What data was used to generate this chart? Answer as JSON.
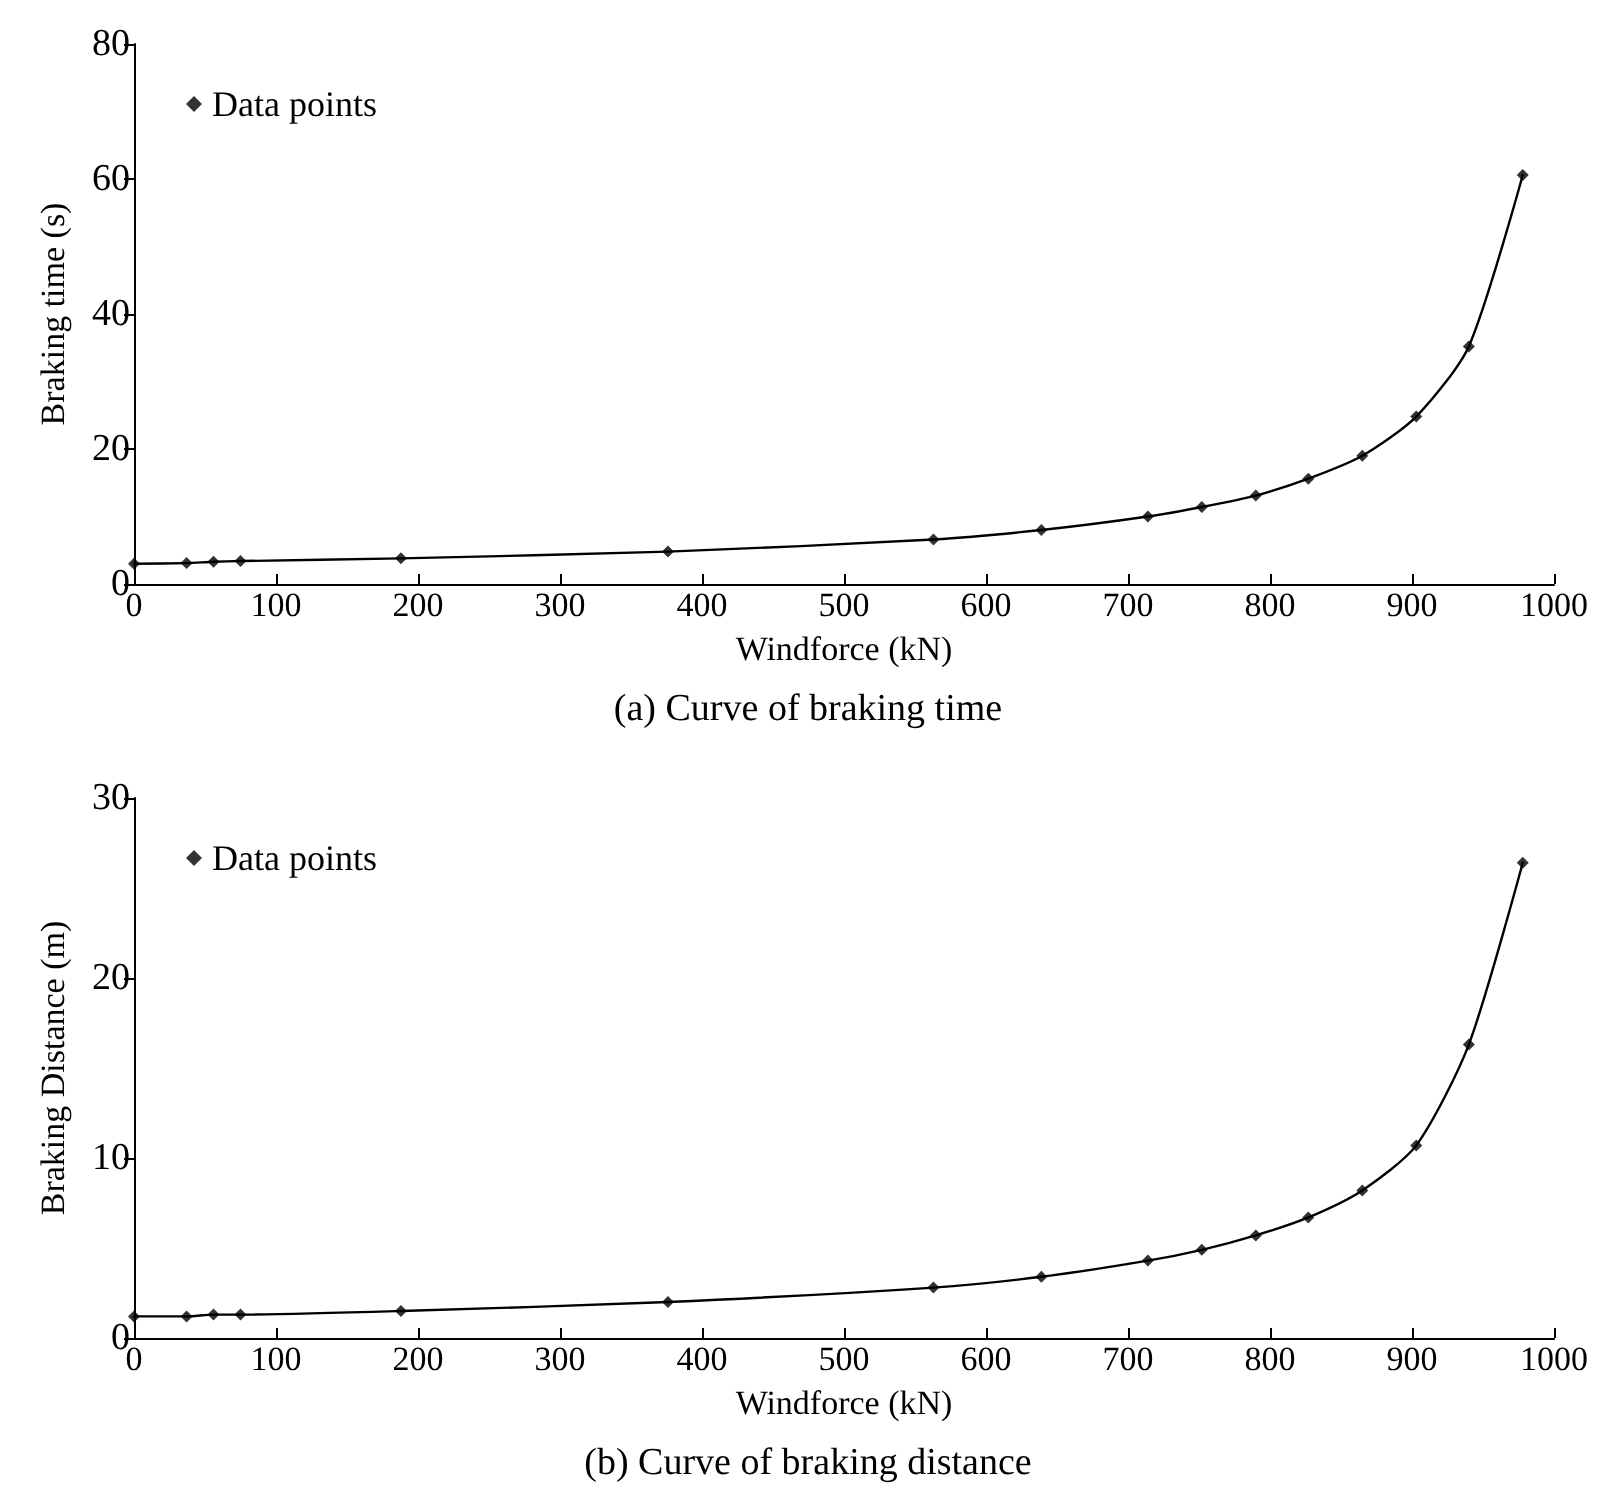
{
  "chart_data": [
    {
      "type": "scatter",
      "xlabel": "Windforce (kN)",
      "ylabel": "Braking time (s)",
      "annotations": [
        "(a) Curve of braking time"
      ],
      "x": [
        0,
        37,
        56,
        75,
        188,
        376,
        563,
        639,
        714,
        752,
        790,
        827,
        865,
        903,
        940,
        978
      ],
      "series": [
        {
          "name": "Data points",
          "marker": "diamond",
          "color": "#000000",
          "values": [
            3,
            3.1,
            3.3,
            3.4,
            3.8,
            4.8,
            6.6,
            8,
            10,
            11.4,
            13.1,
            15.6,
            19,
            24.8,
            35.2,
            60.6
          ]
        },
        {
          "type": "line",
          "marker": "none",
          "color": "#000000",
          "values": [
            3,
            3.1,
            3.3,
            3.4,
            3.8,
            4.8,
            6.6,
            8,
            10,
            11.4,
            13.1,
            15.6,
            19,
            24.8,
            35.2,
            60.6
          ]
        }
      ],
      "xlim": [
        0,
        1000
      ],
      "xticks": [
        0,
        100,
        200,
        300,
        400,
        500,
        600,
        700,
        800,
        900,
        1000
      ],
      "ylim": [
        0,
        80
      ],
      "yticks": [
        0,
        20,
        40,
        60,
        80
      ],
      "legend": "top left",
      "grid": false
    },
    {
      "type": "scatter",
      "xlabel": "Windforce (kN)",
      "ylabel": "Braking Distance (m)",
      "annotations": [
        "(b) Curve of braking distance"
      ],
      "x": [
        0,
        37,
        56,
        75,
        188,
        376,
        563,
        639,
        714,
        752,
        790,
        827,
        865,
        903,
        940,
        978
      ],
      "series": [
        {
          "name": "Data points",
          "marker": "diamond",
          "color": "#000000",
          "values": [
            1.2,
            1.2,
            1.3,
            1.3,
            1.5,
            2,
            2.8,
            3.4,
            4.3,
            4.9,
            5.7,
            6.7,
            8.2,
            10.7,
            16.3,
            26.4
          ]
        },
        {
          "type": "line",
          "marker": "none",
          "color": "#000000",
          "values": [
            1.2,
            1.2,
            1.3,
            1.3,
            1.5,
            2,
            2.8,
            3.4,
            4.3,
            4.9,
            5.7,
            6.7,
            8.2,
            10.7,
            16.3,
            26.4
          ]
        }
      ],
      "xlim": [
        0,
        1000
      ],
      "xticks": [
        0,
        100,
        200,
        300,
        400,
        500,
        600,
        700,
        800,
        900,
        1000
      ],
      "ylim": [
        0,
        30
      ],
      "yticks": [
        0,
        10,
        20,
        30
      ],
      "legend": "top left",
      "grid": false
    }
  ]
}
